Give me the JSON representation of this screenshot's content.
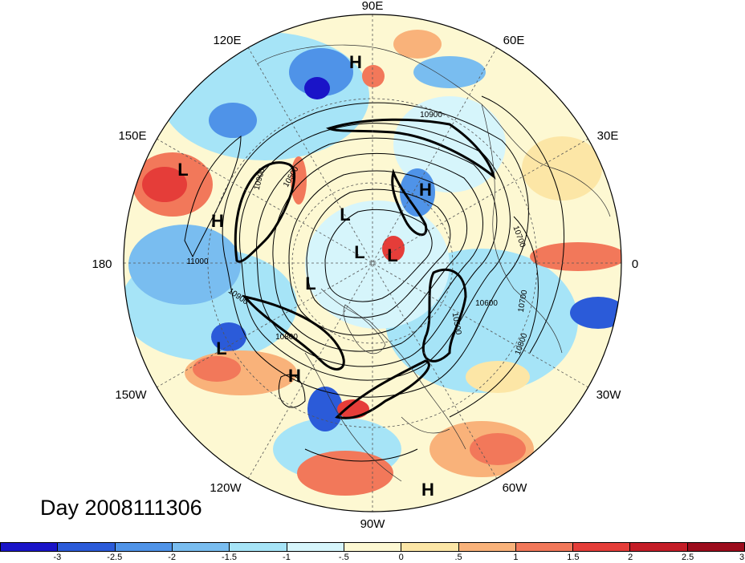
{
  "title": "Day 2008111306",
  "longitude_labels": {
    "90E": "90E",
    "120E": "120E",
    "60E": "60E",
    "150E": "150E",
    "30E": "30E",
    "180": "180",
    "0": "0",
    "150W": "150W",
    "30W": "30W",
    "120W": "120W",
    "60W": "60W",
    "90W": "90W"
  },
  "pressure_centers": [
    {
      "id": "h-top",
      "label": "H"
    },
    {
      "id": "l-west",
      "label": "L"
    },
    {
      "id": "h-west",
      "label": "H"
    },
    {
      "id": "h-northeast",
      "label": "H"
    },
    {
      "id": "l-center-1",
      "label": "L"
    },
    {
      "id": "l-center-2",
      "label": "L"
    },
    {
      "id": "l-center-3",
      "label": "L"
    },
    {
      "id": "l-center-4",
      "label": "L"
    },
    {
      "id": "l-southwest",
      "label": "L"
    },
    {
      "id": "h-southwest",
      "label": "H"
    },
    {
      "id": "h-bottom",
      "label": "H"
    }
  ],
  "contour_labels": [
    {
      "id": "c10900a",
      "label": "10900"
    },
    {
      "id": "c10900b",
      "label": "10900"
    },
    {
      "id": "c10500",
      "label": "10500"
    },
    {
      "id": "c11000",
      "label": "11000"
    },
    {
      "id": "c10900c",
      "label": "10900"
    },
    {
      "id": "c10800",
      "label": "10800"
    },
    {
      "id": "c10700a",
      "label": "10700"
    },
    {
      "id": "c10700b",
      "label": "10700"
    },
    {
      "id": "c10600",
      "label": "10600"
    },
    {
      "id": "c10500b",
      "label": "10500"
    },
    {
      "id": "c10800b",
      "label": "10800"
    }
  ],
  "colorbar": {
    "colors": [
      "#1a14c8",
      "#2b5bd9",
      "#4f93e8",
      "#79bdf0",
      "#a6e4f7",
      "#d6f5fb",
      "#fdf8d2",
      "#fce6a6",
      "#f9b27a",
      "#f2785a",
      "#e53d39",
      "#c41d27",
      "#9c0c1c"
    ],
    "tick_labels": [
      "-3",
      "-2.5",
      "-2",
      "-1.5",
      "-1",
      "-.5",
      "0",
      ".5",
      "1",
      "1.5",
      "2",
      "2.5",
      "3"
    ]
  }
}
